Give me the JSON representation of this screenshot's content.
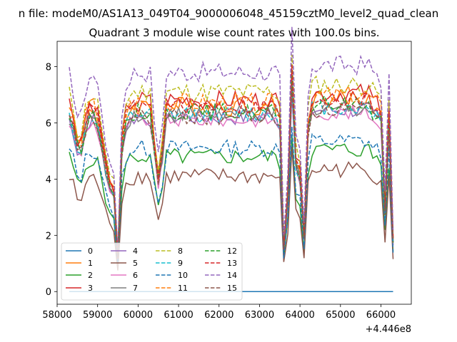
{
  "suptitle": "n file: modeM0/AS1A13_049T04_9000006048_45159cztM0_level2_quad_clean",
  "chart_data": {
    "type": "line",
    "title": "Quadrant 3 module wise count rates with 100.0s bins.",
    "xlabel": "",
    "ylabel": "",
    "x_offset_label": "+4.446e8",
    "xlim": [
      58000,
      66750
    ],
    "ylim": [
      -0.45,
      8.9
    ],
    "xticks": [
      58000,
      59000,
      60000,
      61000,
      62000,
      63000,
      64000,
      65000,
      66000
    ],
    "yticks": [
      0,
      2,
      4,
      6,
      8
    ],
    "grid": false,
    "legend": {
      "placement": "lower-left",
      "columns": 4
    },
    "x_start": 58300,
    "x_step": 100,
    "series": [
      {
        "name": "0",
        "color": "#1f77b4",
        "dash": "solid",
        "level": 0,
        "amp": 0,
        "seed": 0
      },
      {
        "name": "1",
        "color": "#ff7f0e",
        "dash": "solid",
        "level": 6.6,
        "amp": 0.35,
        "seed": 1
      },
      {
        "name": "2",
        "color": "#2ca02c",
        "dash": "solid",
        "level": 4.8,
        "amp": 0.3,
        "seed": 2
      },
      {
        "name": "3",
        "color": "#d62728",
        "dash": "solid",
        "level": 6.8,
        "amp": 0.35,
        "seed": 3
      },
      {
        "name": "4",
        "color": "#9467bd",
        "dash": "solid",
        "level": 6.2,
        "amp": 0.3,
        "seed": 4
      },
      {
        "name": "5",
        "color": "#8c564b",
        "dash": "solid",
        "level": 4.1,
        "amp": 0.3,
        "seed": 5
      },
      {
        "name": "6",
        "color": "#e377c2",
        "dash": "solid",
        "level": 6.1,
        "amp": 0.25,
        "seed": 6
      },
      {
        "name": "7",
        "color": "#7f7f7f",
        "dash": "solid",
        "level": 6.3,
        "amp": 0.3,
        "seed": 7
      },
      {
        "name": "8",
        "color": "#bcbd22",
        "dash": "dashed",
        "level": 7.1,
        "amp": 0.35,
        "seed": 8
      },
      {
        "name": "9",
        "color": "#17becf",
        "dash": "dashed",
        "level": 6.3,
        "amp": 0.3,
        "seed": 9
      },
      {
        "name": "10",
        "color": "#1f77b4",
        "dash": "dashed",
        "level": 5.1,
        "amp": 0.3,
        "seed": 10
      },
      {
        "name": "11",
        "color": "#ff7f0e",
        "dash": "dashed",
        "level": 6.7,
        "amp": 0.35,
        "seed": 11
      },
      {
        "name": "12",
        "color": "#2ca02c",
        "dash": "dashed",
        "level": 6.4,
        "amp": 0.3,
        "seed": 12
      },
      {
        "name": "13",
        "color": "#d62728",
        "dash": "dashed",
        "level": 6.6,
        "amp": 0.3,
        "seed": 13
      },
      {
        "name": "14",
        "color": "#9467bd",
        "dash": "dashed",
        "level": 7.8,
        "amp": 0.35,
        "seed": 14
      },
      {
        "name": "15",
        "color": "#8c564b",
        "dash": "dashed",
        "level": 6.2,
        "amp": 0.3,
        "seed": 15
      }
    ]
  }
}
